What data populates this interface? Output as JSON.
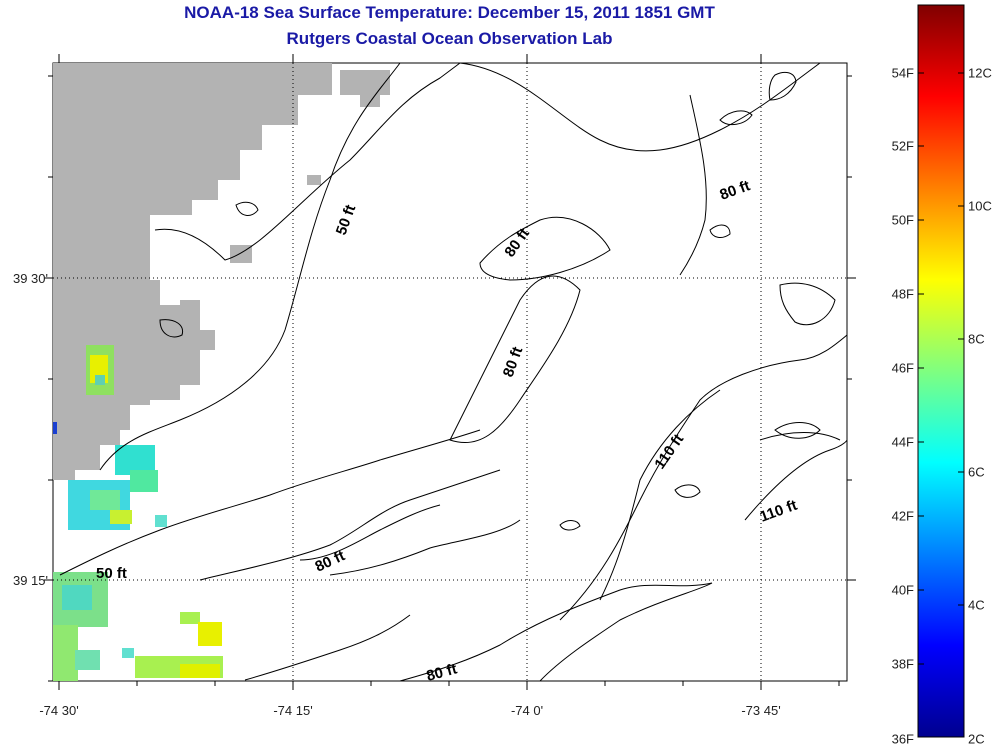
{
  "title_line1": "NOAA-18 Sea Surface Temperature:  December 15, 2011 1851 GMT",
  "title_line2": "Rutgers Coastal Ocean Observation Lab",
  "lat_labels": [
    "39 30'",
    "39 15'"
  ],
  "lon_labels": [
    "-74 30'",
    "-74 15'",
    "-74 0'",
    "-73 45'"
  ],
  "contour_labels": [
    "50 ft",
    "50 ft",
    "80 ft",
    "80 ft",
    "80 ft",
    "80 ft",
    "80 ft",
    "110 ft",
    "110 ft"
  ],
  "colorbar": {
    "fahrenheit_labels": [
      "54F",
      "52F",
      "50F",
      "48F",
      "46F",
      "44F",
      "42F",
      "40F",
      "38F",
      "36F"
    ],
    "celsius_labels": [
      "12C",
      "10C",
      "8C",
      "6C",
      "4C",
      "2C"
    ]
  },
  "colors": {
    "title": "#1a1aa6",
    "land": "#b3b3b3",
    "contour": "#000000"
  }
}
